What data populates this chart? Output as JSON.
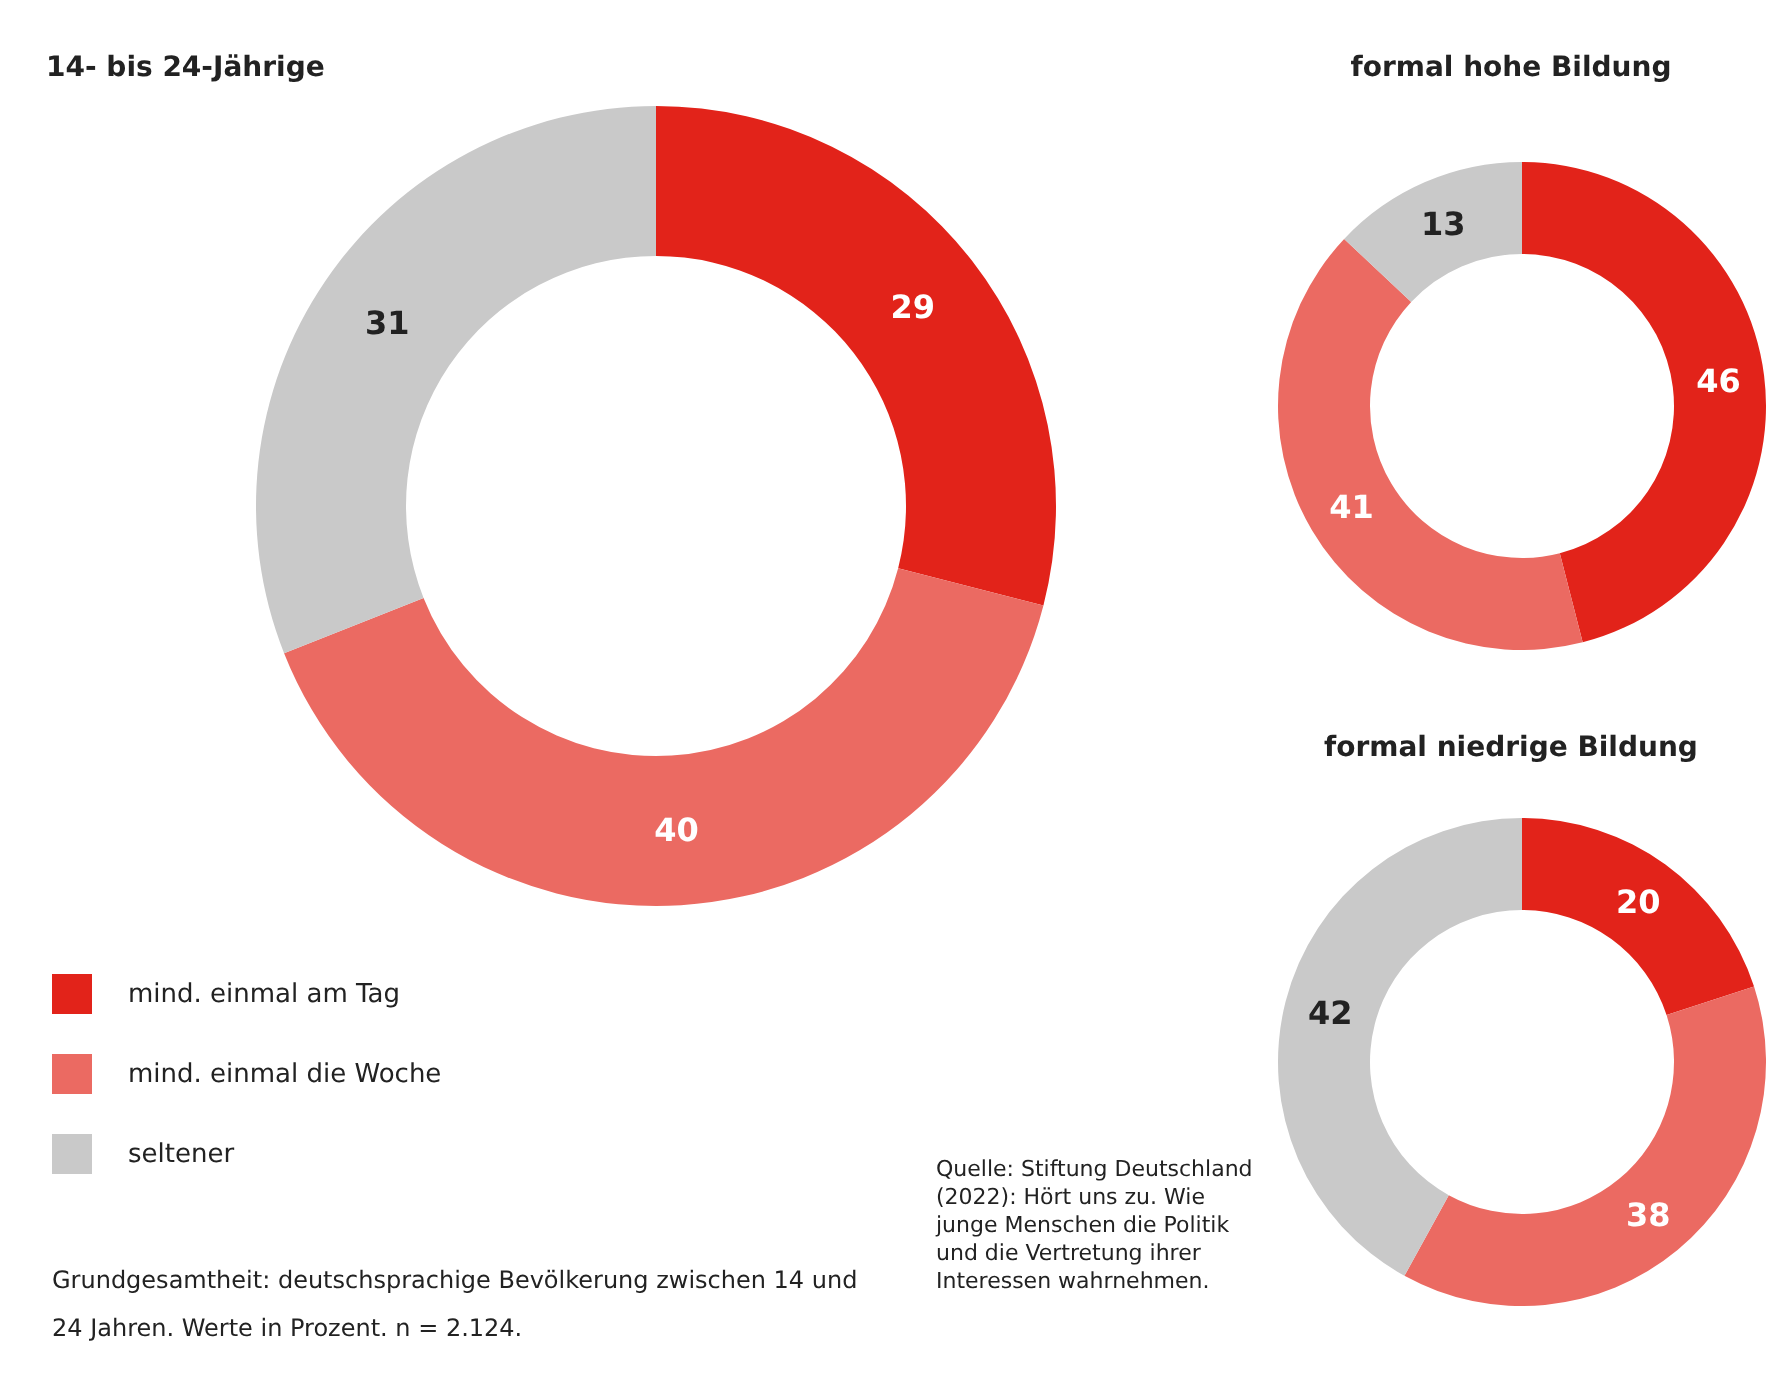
{
  "chart_data": [
    {
      "type": "donut",
      "title": "14- bis 24-Jährige",
      "categories": [
        "mind. einmal am Tag",
        "mind. einmal die Woche",
        "seltener"
      ],
      "values": [
        29,
        40,
        31
      ],
      "colors": [
        "#e2231a",
        "#eb6a62",
        "#c9c9c9"
      ],
      "data_labels": true,
      "legend": "bottom left",
      "annotations": [
        "Grundgesamtheit: deutschsprachige Bevölkerung zwischen 14 und 24 Jahren. Werte in Prozent. n = 2.124.",
        "Quelle: Stiftung Deutschland (2022): Hört uns zu. Wie junge Menschen die Politik und die Vertretung ihrer Interessen wahrnehmen."
      ]
    },
    {
      "type": "donut",
      "title": "formal hohe Bildung",
      "categories": [
        null,
        null,
        null
      ],
      "values": [
        46,
        41,
        13
      ],
      "colors": [
        "#e2231a",
        "#eb6a62",
        "#c9c9c9"
      ],
      "data_labels": true
    },
    {
      "type": "donut",
      "title": "formal niedrige Bildung",
      "categories": [
        null,
        null,
        null
      ],
      "values": [
        20,
        38,
        42
      ],
      "colors": [
        "#e2231a",
        "#eb6a62",
        "#c9c9c9"
      ],
      "data_labels": true
    }
  ]
}
